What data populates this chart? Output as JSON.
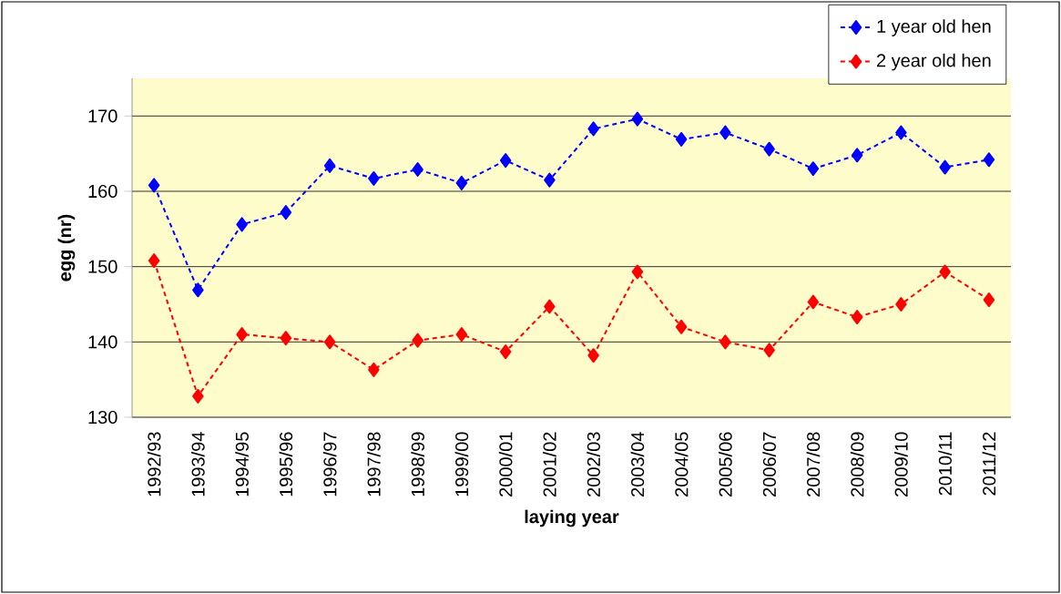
{
  "chart_data": {
    "type": "line",
    "xlabel": "laying year",
    "ylabel": "egg (nr)",
    "categories": [
      "1992/93",
      "1993/94",
      "1994/95",
      "1995/96",
      "1996/97",
      "1997/98",
      "1998/99",
      "1999/00",
      "2000/01",
      "2001/02",
      "2002/03",
      "2003/04",
      "2004/05",
      "2005/06",
      "2006/07",
      "2007/08",
      "2008/09",
      "2009/10",
      "2010/11",
      "2011/12"
    ],
    "series": [
      {
        "name": "1 year old hen",
        "color": "#0000ff",
        "values": [
          160.8,
          146.9,
          155.6,
          157.2,
          163.4,
          161.7,
          162.9,
          161.1,
          164.1,
          161.5,
          168.3,
          169.6,
          166.9,
          167.8,
          165.6,
          163.0,
          164.8,
          167.8,
          163.2,
          164.2
        ]
      },
      {
        "name": "2 year old hen",
        "color": "#ff0000",
        "values": [
          150.8,
          132.8,
          141.0,
          140.5,
          140.0,
          136.3,
          140.2,
          141.0,
          138.7,
          144.7,
          138.2,
          149.3,
          142.0,
          140.0,
          138.9,
          145.3,
          143.3,
          145.0,
          149.3,
          145.6
        ]
      }
    ],
    "ylim": [
      130,
      175
    ],
    "yticks": [
      130,
      140,
      150,
      160,
      170
    ],
    "grid": "y",
    "legend": "top right",
    "marker": "diamond",
    "line_style": "dashed"
  }
}
